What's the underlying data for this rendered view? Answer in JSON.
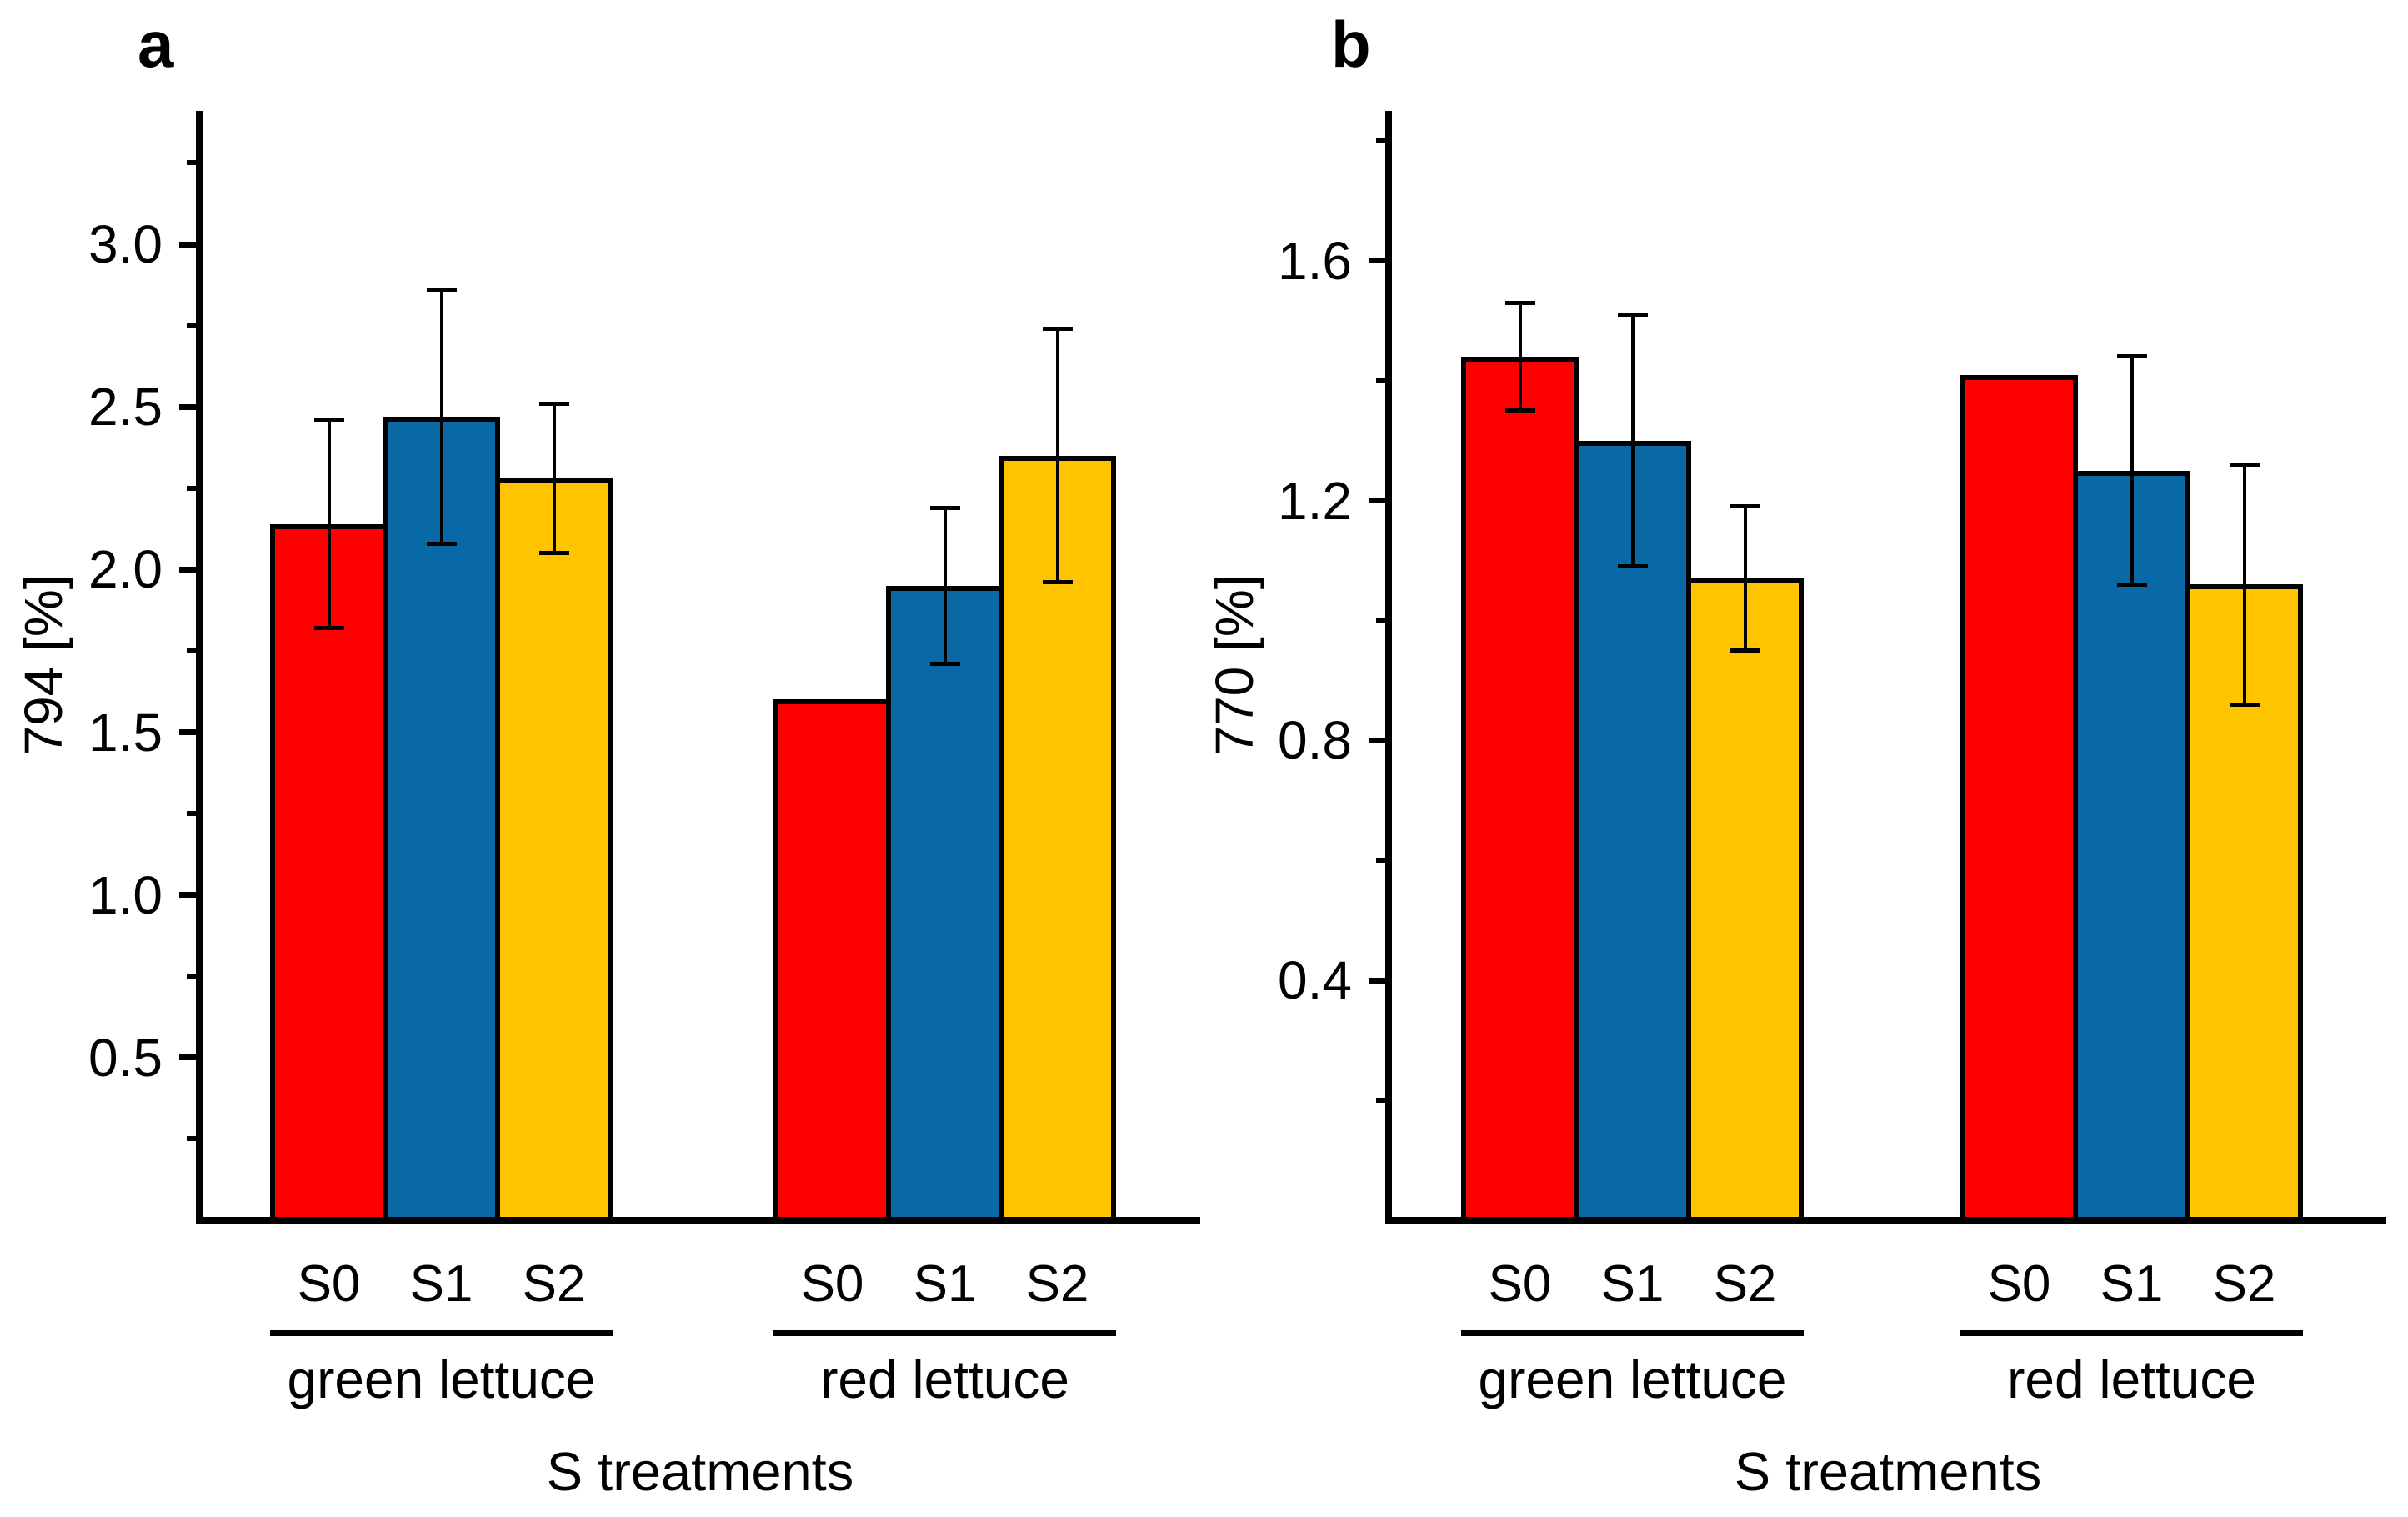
{
  "figure": {
    "background": "#ffffff"
  },
  "colors": {
    "s0_red": "#fe0000",
    "s1_blue": "#0869a6",
    "s2_yellow": "#ffc400",
    "axis": "#000000"
  },
  "chart_data": [
    {
      "type": "bar",
      "panel_letter": "a",
      "ylabel": "794 [%]",
      "xlabel": "S treatments",
      "ylim": [
        0,
        3.41
      ],
      "grid": false,
      "legend": "none",
      "ytick_values": [
        0.5,
        1.0,
        1.5,
        2.0,
        2.5,
        3.0
      ],
      "ytick_labels": [
        "0.5",
        "1.0",
        "1.5",
        "2.0",
        "2.5",
        "3.0"
      ],
      "minor_tick_values": [
        0.25,
        0.75,
        1.25,
        1.75,
        2.25,
        2.75,
        3.25
      ],
      "categories": [
        "S0",
        "S1",
        "S2"
      ],
      "series_colors": [
        "s0_red",
        "s1_blue",
        "s2_yellow"
      ],
      "groups": [
        {
          "label": "green lettuce",
          "values": [
            2.14,
            2.47,
            2.28
          ],
          "errors": [
            0.32,
            0.39,
            0.23
          ]
        },
        {
          "label": "red lettuce",
          "values": [
            1.6,
            1.95,
            2.35
          ],
          "errors": [
            null,
            0.24,
            0.39
          ]
        }
      ]
    },
    {
      "type": "bar",
      "panel_letter": "b",
      "ylabel": "770 [%]",
      "xlabel": "S treatments",
      "ylim": [
        0,
        1.85
      ],
      "grid": false,
      "legend": "none",
      "ytick_values": [
        0.4,
        0.8,
        1.2,
        1.6
      ],
      "ytick_labels": [
        "0.4",
        "0.8",
        "1.2",
        "1.6"
      ],
      "minor_tick_values": [
        0.2,
        0.6,
        1.0,
        1.4,
        1.8
      ],
      "categories": [
        "S0",
        "S1",
        "S2"
      ],
      "series_colors": [
        "s0_red",
        "s1_blue",
        "s2_yellow"
      ],
      "groups": [
        {
          "label": "green lettuce",
          "values": [
            1.44,
            1.3,
            1.07
          ],
          "errors": [
            0.09,
            0.21,
            0.12
          ]
        },
        {
          "label": "red lettuce",
          "values": [
            1.41,
            1.25,
            1.06
          ],
          "errors": [
            null,
            0.19,
            0.2
          ]
        }
      ]
    }
  ]
}
